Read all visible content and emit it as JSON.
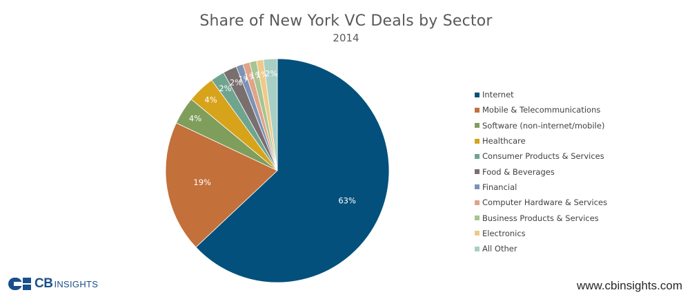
{
  "chart_data": {
    "type": "pie",
    "title": "Share of New York VC Deals by Sector",
    "subtitle": "2014",
    "legend_position": "right",
    "slices": [
      {
        "label": "Internet",
        "value": 63,
        "text": "63%",
        "color": "#04507c"
      },
      {
        "label": "Mobile & Telecommunications",
        "value": 19,
        "text": "19%",
        "color": "#c3703a"
      },
      {
        "label": "Software (non-internet/mobile)",
        "value": 4,
        "text": "4%",
        "color": "#7f9e5c"
      },
      {
        "label": "Healthcare",
        "value": 4,
        "text": "4%",
        "color": "#d7a31b"
      },
      {
        "label": "Consumer Products & Services",
        "value": 2,
        "text": "2%",
        "color": "#6fa58f"
      },
      {
        "label": "Food & Beverages",
        "value": 2,
        "text": "2%",
        "color": "#7a6f6f"
      },
      {
        "label": "Financial",
        "value": 1,
        "text": "1%",
        "color": "#7d92b4"
      },
      {
        "label": "Computer Hardware & Services",
        "value": 1,
        "text": "1%",
        "color": "#dfa488"
      },
      {
        "label": "Business Products & Services",
        "value": 1,
        "text": "1%",
        "color": "#a6c592"
      },
      {
        "label": "Electronics",
        "value": 1,
        "text": "1%",
        "color": "#efc989"
      },
      {
        "label": "All Other",
        "value": 2,
        "text": "2%",
        "color": "#a8cfc3"
      }
    ]
  },
  "footer": {
    "logo_text_cb": "CB",
    "logo_text_insights": "INSIGHTS",
    "url": "www.cbinsights.com"
  }
}
